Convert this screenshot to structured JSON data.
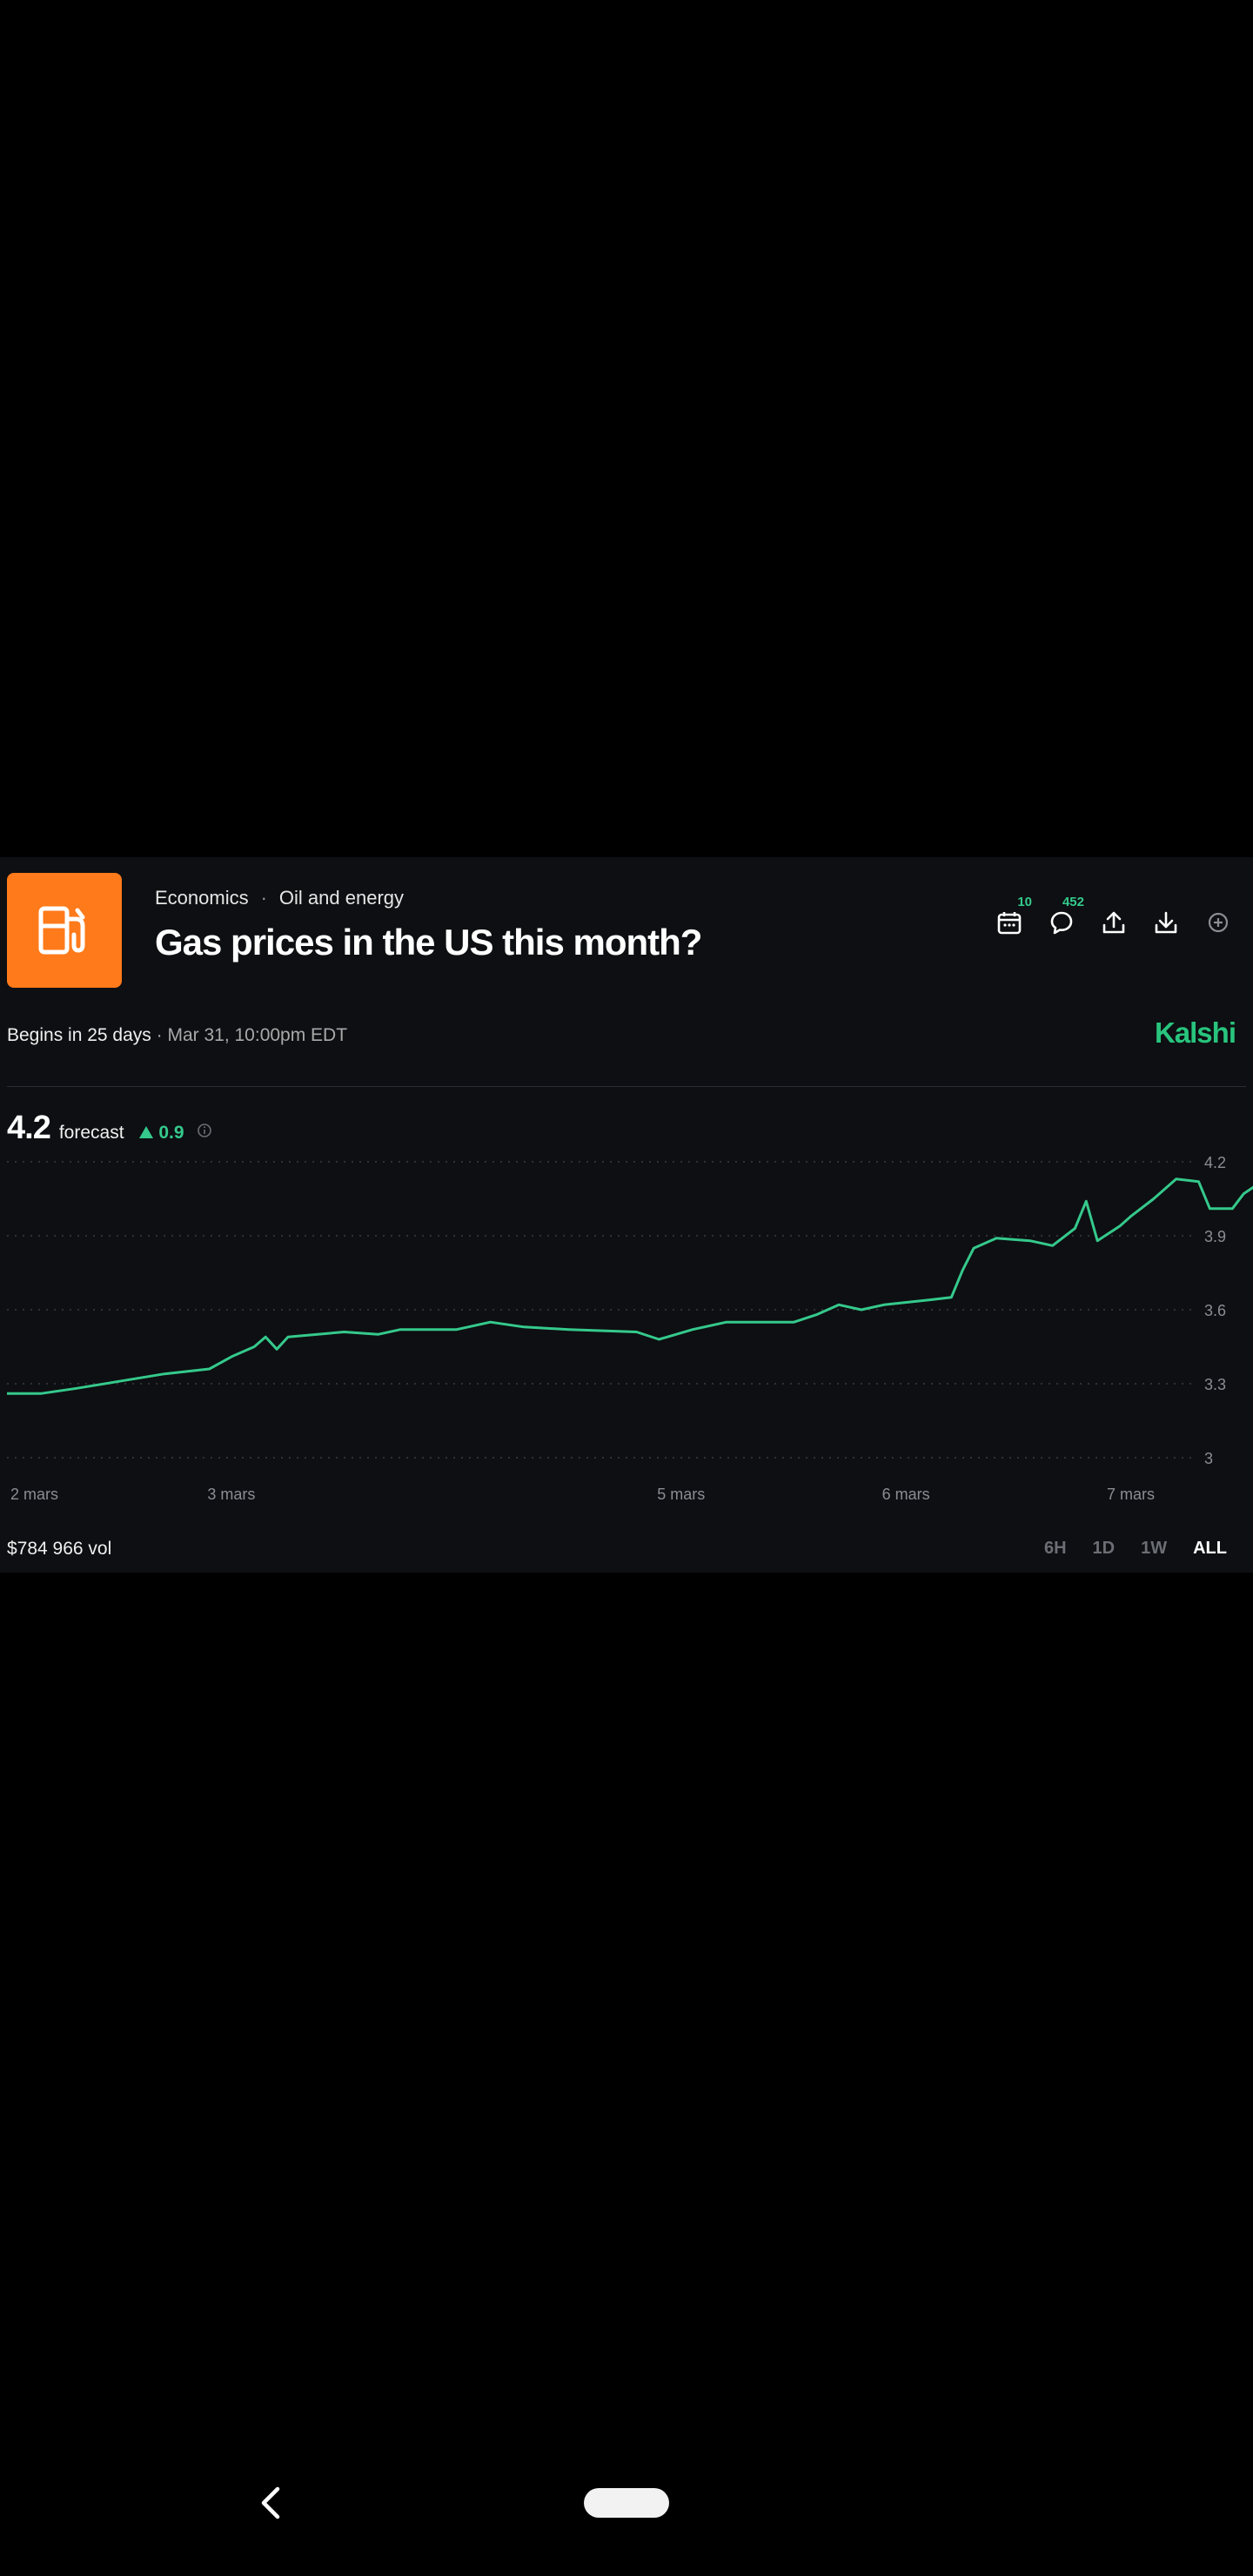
{
  "market": {
    "category": "Economics",
    "separator": "·",
    "subcategory": "Oil and energy",
    "title": "Gas prices in the US this month?",
    "icon": "gas-pump-icon",
    "icon_color": "#ff7a1a"
  },
  "toolbar": {
    "calendar_count": "10",
    "comments_count": "452"
  },
  "schedule": {
    "begins": "Begins in 25 days",
    "separator": "·",
    "date": "Mar 31, 10:00pm EDT"
  },
  "brand": {
    "name": "Kalshi",
    "color": "#28c47d"
  },
  "forecast": {
    "value": "4.2",
    "label": "forecast",
    "change": "0.9",
    "direction": "up"
  },
  "footer": {
    "volume": "$784 966 vol",
    "ranges": [
      "6H",
      "1D",
      "1W",
      "ALL"
    ],
    "active_range": "ALL"
  },
  "chart_data": {
    "type": "line",
    "title": "",
    "xlabel": "",
    "ylabel": "",
    "line_color": "#35c98c",
    "grid": "dotted horizontal",
    "y_axis_position": "right",
    "ylim": [
      3.0,
      4.2
    ],
    "y_ticks": [
      "3",
      "3.3",
      "3.6",
      "3.9",
      "4.2"
    ],
    "x_ticks": [
      {
        "label": "2 mars",
        "x": 0.0
      },
      {
        "label": "3 mars",
        "x": 1.0
      },
      {
        "label": "5 mars",
        "x": 3.0
      },
      {
        "label": "6 mars",
        "x": 4.0
      },
      {
        "label": "7 mars",
        "x": 5.0
      }
    ],
    "x_unit": "days since 2 mars",
    "series": [
      {
        "points": [
          [
            0.0,
            3.26
          ],
          [
            0.15,
            3.26
          ],
          [
            0.3,
            3.28
          ],
          [
            0.5,
            3.31
          ],
          [
            0.7,
            3.34
          ],
          [
            0.9,
            3.36
          ],
          [
            1.0,
            3.41
          ],
          [
            1.1,
            3.45
          ],
          [
            1.15,
            3.49
          ],
          [
            1.2,
            3.44
          ],
          [
            1.25,
            3.49
          ],
          [
            1.5,
            3.51
          ],
          [
            1.65,
            3.5
          ],
          [
            1.75,
            3.52
          ],
          [
            2.0,
            3.52
          ],
          [
            2.15,
            3.55
          ],
          [
            2.3,
            3.53
          ],
          [
            2.5,
            3.52
          ],
          [
            2.8,
            3.51
          ],
          [
            2.9,
            3.48
          ],
          [
            3.05,
            3.52
          ],
          [
            3.2,
            3.55
          ],
          [
            3.4,
            3.55
          ],
          [
            3.5,
            3.55
          ],
          [
            3.6,
            3.58
          ],
          [
            3.7,
            3.62
          ],
          [
            3.8,
            3.6
          ],
          [
            3.9,
            3.62
          ],
          [
            4.1,
            3.64
          ],
          [
            4.2,
            3.65
          ],
          [
            4.25,
            3.76
          ],
          [
            4.3,
            3.85
          ],
          [
            4.4,
            3.89
          ],
          [
            4.55,
            3.88
          ],
          [
            4.65,
            3.86
          ],
          [
            4.75,
            3.93
          ],
          [
            4.8,
            4.04
          ],
          [
            4.85,
            3.88
          ],
          [
            4.95,
            3.94
          ],
          [
            5.0,
            3.98
          ],
          [
            5.1,
            4.05
          ],
          [
            5.2,
            4.13
          ],
          [
            5.3,
            4.12
          ],
          [
            5.35,
            4.01
          ],
          [
            5.45,
            4.01
          ],
          [
            5.5,
            4.07
          ],
          [
            5.58,
            4.12
          ],
          [
            5.62,
            4.2
          ]
        ]
      }
    ]
  }
}
